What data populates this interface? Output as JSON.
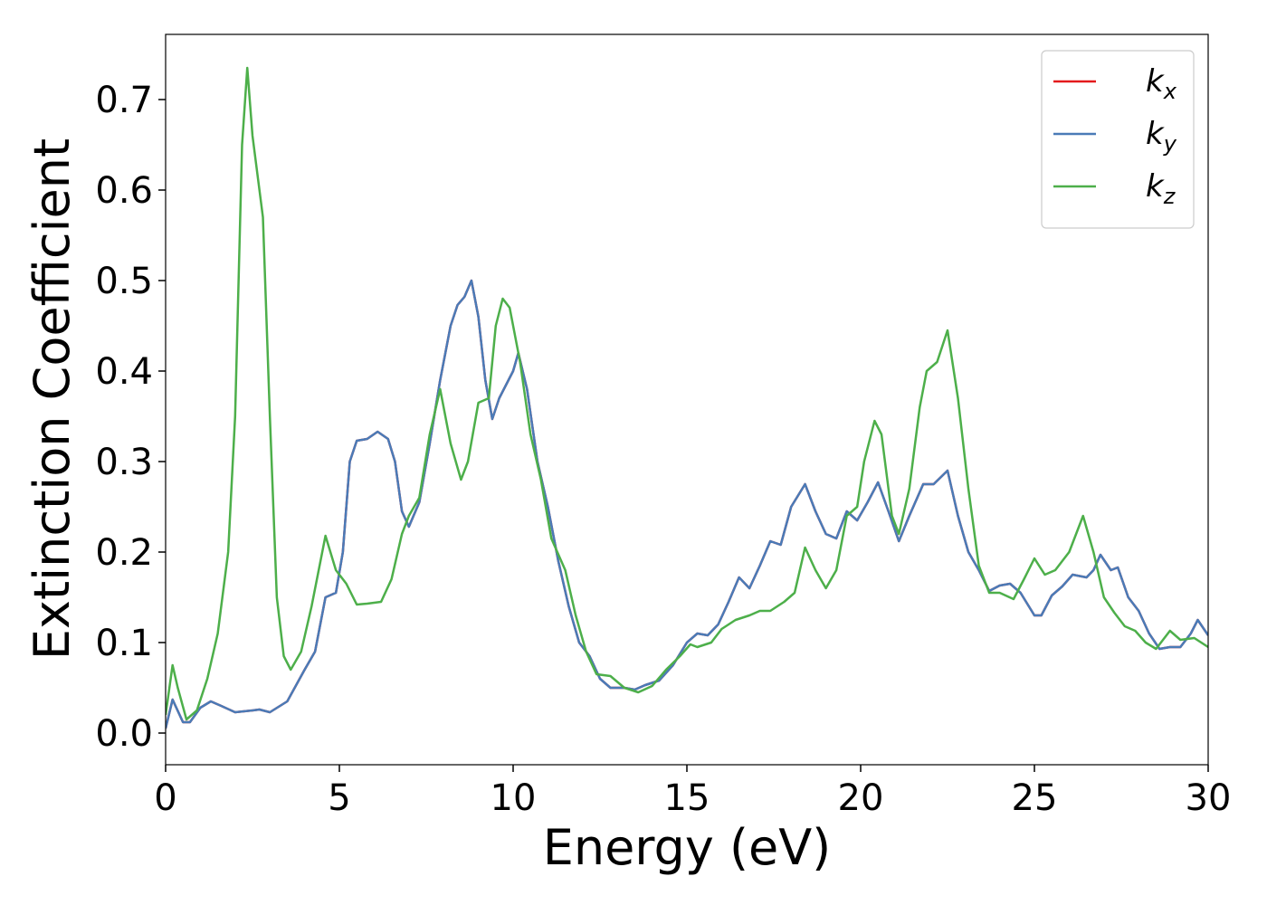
{
  "chart_data": {
    "type": "line",
    "xlabel": "Energy (eV)",
    "ylabel": "Extinction Coefficient",
    "xlim": [
      0,
      30
    ],
    "ylim": [
      -0.035,
      0.772
    ],
    "xticks": [
      0,
      5,
      10,
      15,
      20,
      25,
      30
    ],
    "yticks": [
      {
        "value": 0,
        "label": "0.0"
      },
      0.1,
      0.2,
      0.3,
      0.4,
      0.5,
      0.6,
      0.7
    ],
    "legend": "upper right",
    "grid": false,
    "series": [
      {
        "name": "kx",
        "color": "#e41a1c",
        "x": [
          0,
          0.2,
          0.5,
          0.7,
          1.0,
          1.3,
          1.6,
          2.0,
          2.5,
          2.7,
          3.0,
          3.5,
          4.0,
          4.3,
          4.6,
          4.9,
          5.1,
          5.3,
          5.5,
          5.8,
          6.1,
          6.4,
          6.6,
          6.8,
          7.0,
          7.3,
          7.6,
          7.9,
          8.2,
          8.4,
          8.6,
          8.8,
          9.0,
          9.2,
          9.4,
          9.6,
          9.8,
          10.0,
          10.15,
          10.4,
          10.7,
          11.0,
          11.3,
          11.6,
          11.9,
          12.2,
          12.5,
          12.8,
          13.2,
          13.5,
          13.8,
          14.2,
          14.6,
          15.0,
          15.3,
          15.6,
          15.9,
          16.2,
          16.5,
          16.8,
          17.1,
          17.4,
          17.7,
          18.0,
          18.4,
          18.7,
          19.0,
          19.3,
          19.6,
          19.9,
          20.2,
          20.5,
          20.8,
          21.1,
          21.4,
          21.8,
          22.1,
          22.5,
          22.8,
          23.1,
          23.4,
          23.7,
          24.0,
          24.3,
          24.6,
          25.0,
          25.2,
          25.5,
          25.8,
          26.1,
          26.5,
          26.7,
          26.9,
          27.2,
          27.4,
          27.7,
          28.0,
          28.3,
          28.6,
          28.9,
          29.2,
          29.5,
          29.7,
          30.0
        ],
        "values": [
          0.005,
          0.037,
          0.012,
          0.012,
          0.028,
          0.035,
          0.03,
          0.023,
          0.025,
          0.026,
          0.023,
          0.035,
          0.07,
          0.09,
          0.15,
          0.155,
          0.2,
          0.3,
          0.323,
          0.325,
          0.333,
          0.325,
          0.3,
          0.245,
          0.228,
          0.255,
          0.32,
          0.39,
          0.45,
          0.473,
          0.482,
          0.5,
          0.46,
          0.39,
          0.347,
          0.37,
          0.385,
          0.4,
          0.42,
          0.38,
          0.3,
          0.25,
          0.19,
          0.14,
          0.1,
          0.085,
          0.06,
          0.05,
          0.05,
          0.048,
          0.053,
          0.058,
          0.075,
          0.1,
          0.11,
          0.108,
          0.12,
          0.145,
          0.172,
          0.16,
          0.185,
          0.212,
          0.208,
          0.25,
          0.275,
          0.245,
          0.22,
          0.215,
          0.245,
          0.235,
          0.255,
          0.277,
          0.245,
          0.212,
          0.24,
          0.275,
          0.275,
          0.29,
          0.24,
          0.2,
          0.18,
          0.157,
          0.163,
          0.165,
          0.155,
          0.13,
          0.13,
          0.152,
          0.162,
          0.175,
          0.172,
          0.18,
          0.197,
          0.18,
          0.183,
          0.15,
          0.135,
          0.11,
          0.093,
          0.095,
          0.095,
          0.11,
          0.125,
          0.108
        ]
      },
      {
        "name": "ky",
        "color": "#4a7bb7",
        "x": [
          0,
          0.2,
          0.5,
          0.7,
          1.0,
          1.3,
          1.6,
          2.0,
          2.5,
          2.7,
          3.0,
          3.5,
          4.0,
          4.3,
          4.6,
          4.9,
          5.1,
          5.3,
          5.5,
          5.8,
          6.1,
          6.4,
          6.6,
          6.8,
          7.0,
          7.3,
          7.6,
          7.9,
          8.2,
          8.4,
          8.6,
          8.8,
          9.0,
          9.2,
          9.4,
          9.6,
          9.8,
          10.0,
          10.15,
          10.4,
          10.7,
          11.0,
          11.3,
          11.6,
          11.9,
          12.2,
          12.5,
          12.8,
          13.2,
          13.5,
          13.8,
          14.2,
          14.6,
          15.0,
          15.3,
          15.6,
          15.9,
          16.2,
          16.5,
          16.8,
          17.1,
          17.4,
          17.7,
          18.0,
          18.4,
          18.7,
          19.0,
          19.3,
          19.6,
          19.9,
          20.2,
          20.5,
          20.8,
          21.1,
          21.4,
          21.8,
          22.1,
          22.5,
          22.8,
          23.1,
          23.4,
          23.7,
          24.0,
          24.3,
          24.6,
          25.0,
          25.2,
          25.5,
          25.8,
          26.1,
          26.5,
          26.7,
          26.9,
          27.2,
          27.4,
          27.7,
          28.0,
          28.3,
          28.6,
          28.9,
          29.2,
          29.5,
          29.7,
          30.0
        ],
        "values": [
          0.005,
          0.037,
          0.012,
          0.012,
          0.028,
          0.035,
          0.03,
          0.023,
          0.025,
          0.026,
          0.023,
          0.035,
          0.07,
          0.09,
          0.15,
          0.155,
          0.2,
          0.3,
          0.323,
          0.325,
          0.333,
          0.325,
          0.3,
          0.245,
          0.228,
          0.255,
          0.32,
          0.39,
          0.45,
          0.473,
          0.482,
          0.5,
          0.46,
          0.39,
          0.347,
          0.37,
          0.385,
          0.4,
          0.42,
          0.38,
          0.3,
          0.25,
          0.19,
          0.14,
          0.1,
          0.085,
          0.06,
          0.05,
          0.05,
          0.048,
          0.053,
          0.058,
          0.075,
          0.1,
          0.11,
          0.108,
          0.12,
          0.145,
          0.172,
          0.16,
          0.185,
          0.212,
          0.208,
          0.25,
          0.275,
          0.245,
          0.22,
          0.215,
          0.245,
          0.235,
          0.255,
          0.277,
          0.245,
          0.212,
          0.24,
          0.275,
          0.275,
          0.29,
          0.24,
          0.2,
          0.18,
          0.157,
          0.163,
          0.165,
          0.155,
          0.13,
          0.13,
          0.152,
          0.162,
          0.175,
          0.172,
          0.18,
          0.197,
          0.18,
          0.183,
          0.15,
          0.135,
          0.11,
          0.093,
          0.095,
          0.095,
          0.11,
          0.125,
          0.108
        ]
      },
      {
        "name": "kz",
        "color": "#4daf4a",
        "x": [
          0,
          0.2,
          0.35,
          0.6,
          0.9,
          1.2,
          1.5,
          1.8,
          2.0,
          2.2,
          2.35,
          2.5,
          2.8,
          3.0,
          3.2,
          3.4,
          3.6,
          3.9,
          4.2,
          4.6,
          4.9,
          5.2,
          5.5,
          5.8,
          6.2,
          6.5,
          6.8,
          7.0,
          7.3,
          7.6,
          7.9,
          8.2,
          8.5,
          8.7,
          9.0,
          9.3,
          9.5,
          9.7,
          9.9,
          10.2,
          10.5,
          10.8,
          11.1,
          11.5,
          11.8,
          12.1,
          12.4,
          12.8,
          13.2,
          13.6,
          14.0,
          14.4,
          14.8,
          15.1,
          15.3,
          15.7,
          16.0,
          16.4,
          16.8,
          17.1,
          17.4,
          17.8,
          18.1,
          18.4,
          18.7,
          19.0,
          19.3,
          19.6,
          19.9,
          20.1,
          20.4,
          20.6,
          20.9,
          21.1,
          21.4,
          21.7,
          21.9,
          22.2,
          22.5,
          22.8,
          23.1,
          23.4,
          23.7,
          24.0,
          24.4,
          24.7,
          25.0,
          25.3,
          25.6,
          26.0,
          26.4,
          26.7,
          27.0,
          27.3,
          27.6,
          27.9,
          28.2,
          28.5,
          28.9,
          29.2,
          29.6,
          30.0
        ],
        "values": [
          0.02,
          0.075,
          0.05,
          0.015,
          0.025,
          0.06,
          0.11,
          0.2,
          0.35,
          0.65,
          0.735,
          0.66,
          0.57,
          0.35,
          0.15,
          0.085,
          0.07,
          0.09,
          0.14,
          0.218,
          0.18,
          0.165,
          0.142,
          0.143,
          0.145,
          0.17,
          0.22,
          0.24,
          0.26,
          0.33,
          0.38,
          0.32,
          0.28,
          0.3,
          0.365,
          0.37,
          0.45,
          0.48,
          0.47,
          0.41,
          0.33,
          0.28,
          0.215,
          0.18,
          0.13,
          0.09,
          0.065,
          0.063,
          0.05,
          0.045,
          0.052,
          0.07,
          0.085,
          0.098,
          0.095,
          0.1,
          0.115,
          0.125,
          0.13,
          0.135,
          0.135,
          0.145,
          0.155,
          0.205,
          0.18,
          0.16,
          0.18,
          0.24,
          0.25,
          0.3,
          0.345,
          0.33,
          0.24,
          0.22,
          0.27,
          0.36,
          0.4,
          0.41,
          0.445,
          0.37,
          0.27,
          0.185,
          0.155,
          0.155,
          0.148,
          0.17,
          0.193,
          0.175,
          0.18,
          0.2,
          0.24,
          0.2,
          0.15,
          0.133,
          0.118,
          0.113,
          0.1,
          0.093,
          0.113,
          0.103,
          0.105,
          0.095
        ]
      }
    ]
  }
}
